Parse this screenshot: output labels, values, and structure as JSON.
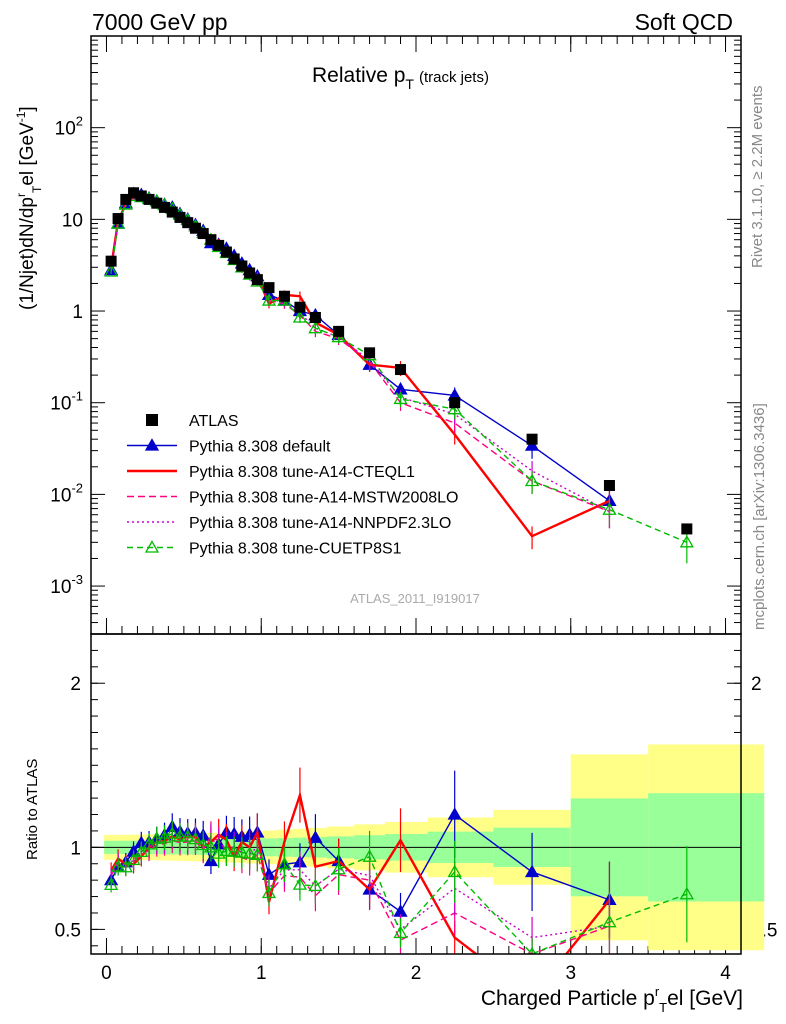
{
  "header": {
    "left": "7000 GeV pp",
    "right": "Soft QCD"
  },
  "side_labels": {
    "top": "Rivet 3.1.10, ≥ 2.2M events",
    "bottom": "mcplots.cern.ch [arXiv:1306.3436]"
  },
  "chart_data": {
    "type": "line",
    "title_main": "Relative p",
    "title_sub": "T",
    "title_note": "(track jets)",
    "watermark": "ATLAS_2011_I919017",
    "ylabel_main": "(1/Njet)dN/dp",
    "ylabel_sup": "r",
    "ylabel_sub": "T",
    "ylabel_rest": "el [GeV",
    "ylabel_exp": "-1",
    "ylabel_end": "]",
    "ratio_ylabel": "Ratio to ATLAS",
    "xlabel": "Charged Particle p",
    "xlabel_sup": "r",
    "xlabel_sub": "T",
    "xlabel_rest": "el [GeV]",
    "xlim": [
      -0.1,
      4.1
    ],
    "main_ylog": true,
    "main_ylim": [
      0.0003,
      1000
    ],
    "main_yticks": [
      {
        "v": 0.001,
        "b": "10",
        "e": "-3"
      },
      {
        "v": 0.01,
        "b": "10",
        "e": "-2"
      },
      {
        "v": 0.1,
        "b": "10",
        "e": "-1"
      },
      {
        "v": 1,
        "b": "1",
        "e": ""
      },
      {
        "v": 10,
        "b": "10",
        "e": ""
      },
      {
        "v": 100,
        "b": "10",
        "e": "2"
      }
    ],
    "ratio_ylim": [
      0.35,
      2.3
    ],
    "ratio_yticks": [
      {
        "v": 0.5,
        "t": "0.5"
      },
      {
        "v": 1,
        "t": "1"
      },
      {
        "v": 2,
        "t": "2"
      }
    ],
    "xticks": [
      {
        "v": 0,
        "t": "0"
      },
      {
        "v": 1,
        "t": "1"
      },
      {
        "v": 2,
        "t": "2"
      },
      {
        "v": 3,
        "t": "3"
      },
      {
        "v": 4,
        "t": "4"
      }
    ],
    "x": [
      0.03,
      0.075,
      0.125,
      0.175,
      0.225,
      0.275,
      0.325,
      0.375,
      0.425,
      0.475,
      0.525,
      0.575,
      0.625,
      0.675,
      0.725,
      0.775,
      0.825,
      0.875,
      0.925,
      0.975,
      1.05,
      1.15,
      1.25,
      1.35,
      1.5,
      1.7,
      1.9,
      2.25,
      2.75,
      3.25,
      3.75
    ],
    "data_series": {
      "name": "ATLAS",
      "values": [
        3.5,
        10.2,
        16.5,
        19.5,
        18.0,
        16.5,
        15.0,
        13.5,
        12.0,
        10.5,
        9.2,
        8.0,
        7.0,
        6.0,
        5.2,
        4.4,
        3.7,
        3.1,
        2.6,
        2.2,
        1.8,
        1.45,
        1.1,
        0.85,
        0.6,
        0.35,
        0.23,
        0.1,
        0.04,
        0.0125,
        0.0042
      ]
    },
    "series": [
      {
        "name": "Pythia 8.308 default",
        "color": "#0000cc",
        "dash": "",
        "marker": "tri-filled",
        "values": [
          2.8,
          9.0,
          15.0,
          19.0,
          18.5,
          17.0,
          15.8,
          14.5,
          13.5,
          11.5,
          10.0,
          8.7,
          7.5,
          5.5,
          5.3,
          4.8,
          4.0,
          3.3,
          2.8,
          2.4,
          1.5,
          1.3,
          1.0,
          0.9,
          0.55,
          0.26,
          0.14,
          0.12,
          0.034,
          0.0085,
          null
        ]
      },
      {
        "name": "Pythia 8.308 tune-A14-CTEQL1",
        "color": "#ff0000",
        "dash": "",
        "marker": "none",
        "values": [
          3.0,
          9.5,
          14.8,
          17.5,
          17.0,
          16.5,
          15.5,
          14.0,
          12.8,
          11.0,
          9.8,
          8.5,
          7.0,
          6.2,
          5.6,
          4.6,
          3.5,
          3.2,
          2.6,
          2.4,
          1.2,
          1.5,
          1.45,
          0.75,
          0.55,
          0.26,
          0.24,
          0.045,
          0.0035,
          0.0085,
          null
        ]
      },
      {
        "name": "Pythia 8.308 tune-A14-MSTW2008LO",
        "color": "#ff0080",
        "dash": "7,4",
        "marker": "none",
        "values": [
          2.9,
          9.2,
          14.5,
          17.8,
          17.2,
          16.2,
          15.2,
          13.8,
          12.5,
          10.8,
          9.5,
          8.3,
          6.9,
          6.4,
          5.4,
          4.3,
          3.6,
          2.9,
          2.4,
          2.1,
          1.3,
          1.2,
          0.9,
          0.6,
          0.5,
          0.28,
          0.1,
          0.06,
          0.014,
          0.0065,
          null
        ]
      },
      {
        "name": "Pythia 8.308 tune-A14-NNPDF2.3LO",
        "color": "#cc00cc",
        "dash": "2,3",
        "marker": "none",
        "values": [
          2.9,
          9.3,
          14.7,
          18.0,
          17.5,
          16.5,
          15.5,
          14.0,
          12.9,
          11.0,
          9.6,
          8.4,
          7.0,
          6.3,
          5.3,
          4.4,
          3.7,
          3.0,
          2.5,
          2.2,
          1.35,
          1.25,
          0.95,
          0.65,
          0.52,
          0.29,
          0.115,
          0.075,
          0.018,
          0.0065,
          null
        ]
      },
      {
        "name": "Pythia 8.308 tune-CUETP8S1",
        "color": "#00bb00",
        "dash": "6,4",
        "marker": "tri-open",
        "values": [
          2.7,
          9.0,
          14.5,
          18.0,
          17.5,
          16.8,
          15.8,
          14.3,
          13.0,
          11.2,
          9.8,
          8.4,
          7.1,
          6.0,
          5.0,
          4.3,
          3.6,
          3.0,
          2.5,
          2.1,
          1.3,
          1.3,
          0.85,
          0.65,
          0.52,
          0.33,
          0.11,
          0.085,
          0.014,
          0.0068,
          0.003
        ]
      }
    ]
  }
}
